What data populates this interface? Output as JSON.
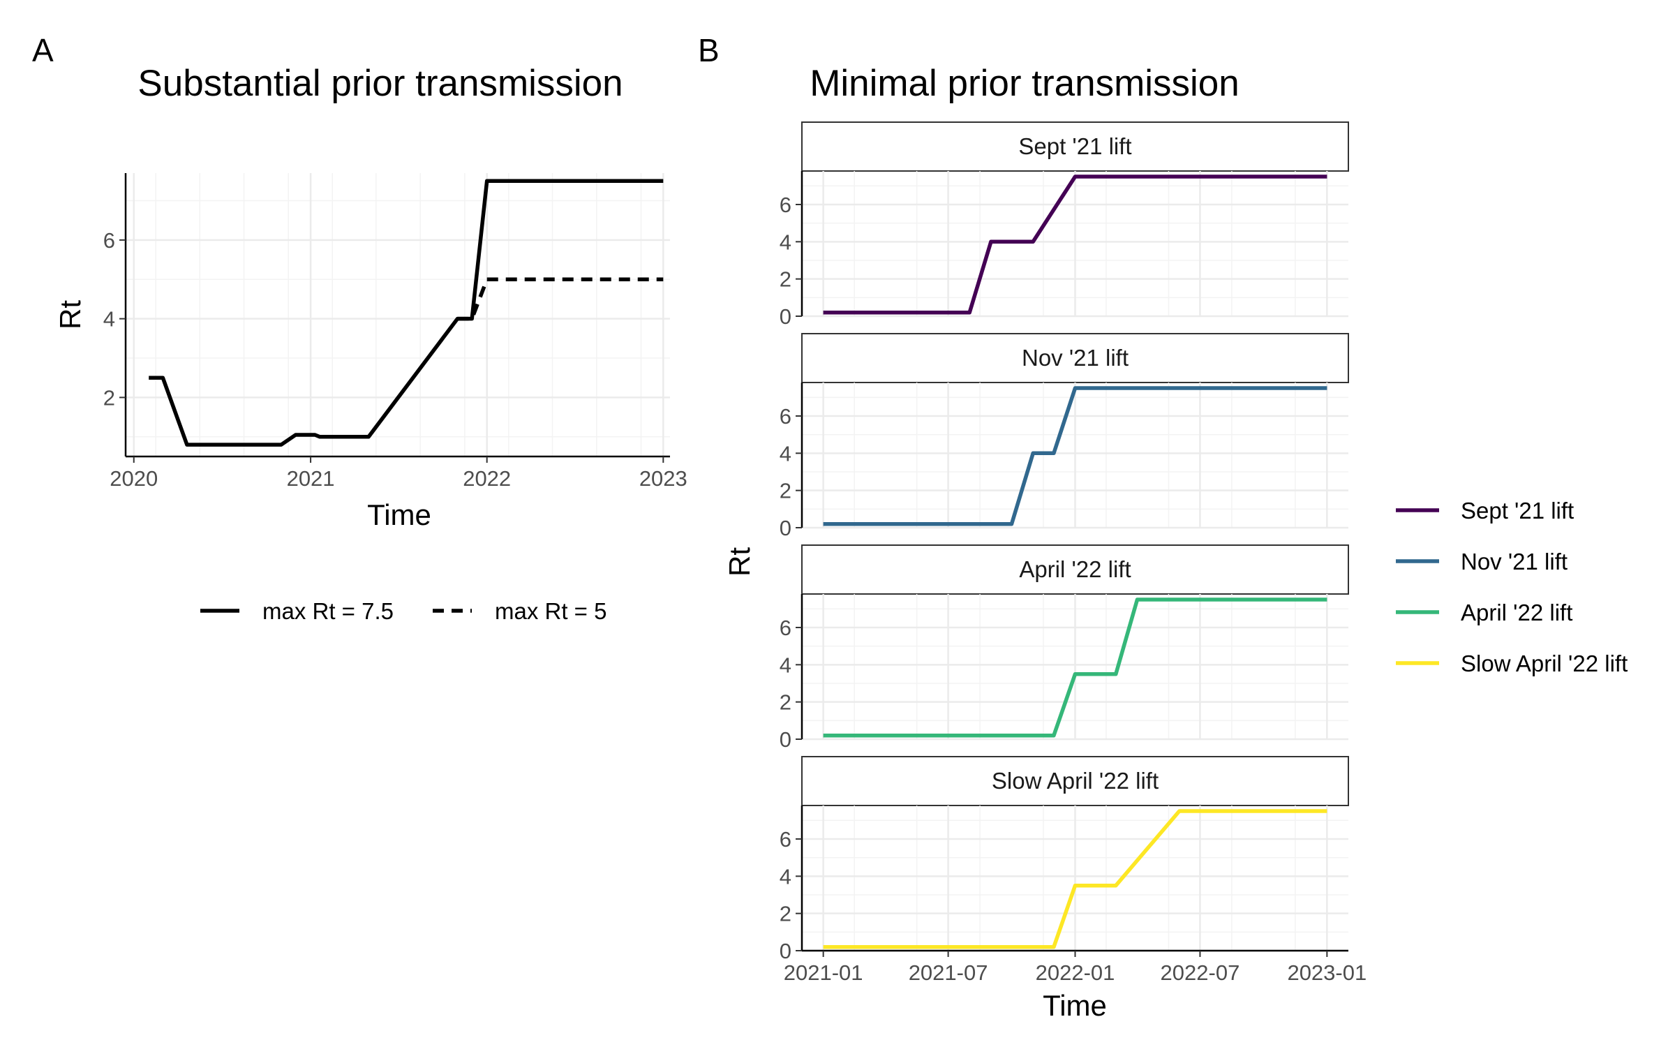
{
  "panel_labels": [
    "A",
    "B"
  ],
  "chart_data": [
    {
      "type": "line",
      "title": "Substantial prior transmission",
      "xlabel": "Time",
      "ylabel": "Rt",
      "x_ticks": [
        "2020",
        "2021",
        "2022",
        "2023"
      ],
      "y_ticks": [
        "2",
        "4",
        "6"
      ],
      "xlim": [
        "2019-12-15",
        "2023-01-15"
      ],
      "ylim": [
        0.5,
        7.7
      ],
      "grid": true,
      "legend_position": "bottom",
      "series": [
        {
          "name": "max Rt = 7.5",
          "line_style": "solid",
          "color": "#000000",
          "points": [
            [
              "2020-02-01",
              2.5
            ],
            [
              "2020-03-01",
              2.5
            ],
            [
              "2020-04-20",
              0.8
            ],
            [
              "2020-11-01",
              0.8
            ],
            [
              "2020-12-01",
              1.05
            ],
            [
              "2021-01-10",
              1.05
            ],
            [
              "2021-01-20",
              1.0
            ],
            [
              "2021-05-01",
              1.0
            ],
            [
              "2021-11-01",
              4.0
            ],
            [
              "2021-12-01",
              4.0
            ],
            [
              "2022-01-01",
              7.5
            ],
            [
              "2023-01-01",
              7.5
            ]
          ]
        },
        {
          "name": "max Rt = 5",
          "line_style": "dashed",
          "color": "#000000",
          "points": [
            [
              "2021-11-01",
              4.0
            ],
            [
              "2021-12-01",
              4.0
            ],
            [
              "2022-01-01",
              5.0
            ],
            [
              "2023-01-01",
              5.0
            ]
          ]
        }
      ]
    },
    {
      "type": "line",
      "title": "Minimal prior transmission",
      "xlabel": "Time",
      "ylabel": "Rt",
      "x_ticks": [
        "2021-01",
        "2021-07",
        "2022-01",
        "2022-07",
        "2023-01"
      ],
      "y_ticks": [
        "0",
        "2",
        "4",
        "6"
      ],
      "xlim": [
        "2020-12-01",
        "2023-02-01"
      ],
      "ylim": [
        0,
        7.8
      ],
      "grid": true,
      "legend_position": "right",
      "facets": [
        {
          "strip": "Sept '21 lift",
          "color": "#440154",
          "points": [
            [
              "2021-01-01",
              0.2
            ],
            [
              "2021-08-01",
              0.2
            ],
            [
              "2021-09-01",
              4.0
            ],
            [
              "2021-11-01",
              4.0
            ],
            [
              "2022-01-01",
              7.5
            ],
            [
              "2023-01-01",
              7.5
            ]
          ]
        },
        {
          "strip": "Nov '21 lift",
          "color": "#31688E",
          "points": [
            [
              "2021-01-01",
              0.2
            ],
            [
              "2021-10-01",
              0.2
            ],
            [
              "2021-11-01",
              4.0
            ],
            [
              "2021-12-01",
              4.0
            ],
            [
              "2022-01-01",
              7.5
            ],
            [
              "2023-01-01",
              7.5
            ]
          ]
        },
        {
          "strip": "April '22 lift",
          "color": "#35B779",
          "points": [
            [
              "2021-01-01",
              0.2
            ],
            [
              "2021-12-01",
              0.2
            ],
            [
              "2022-01-01",
              3.5
            ],
            [
              "2022-03-01",
              3.5
            ],
            [
              "2022-04-01",
              7.5
            ],
            [
              "2023-01-01",
              7.5
            ]
          ]
        },
        {
          "strip": "Slow April '22 lift",
          "color": "#FDE725",
          "points": [
            [
              "2021-01-01",
              0.2
            ],
            [
              "2021-12-01",
              0.2
            ],
            [
              "2022-01-01",
              3.5
            ],
            [
              "2022-03-01",
              3.5
            ],
            [
              "2022-06-01",
              7.5
            ],
            [
              "2023-01-01",
              7.5
            ]
          ]
        }
      ]
    }
  ]
}
